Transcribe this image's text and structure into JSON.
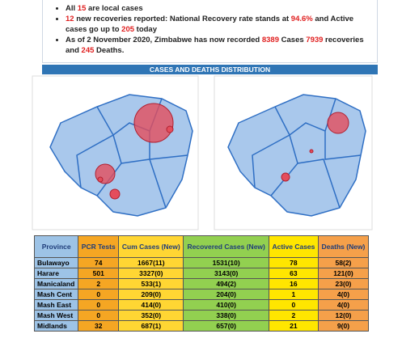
{
  "bullets": [
    [
      {
        "text": "All "
      },
      {
        "text": "15",
        "color": "#e02020"
      },
      {
        "text": " are local cases"
      }
    ],
    [
      {
        "text": "12",
        "color": "#e02020"
      },
      {
        "text": " new recoveries reported: National Recovery rate stands at "
      },
      {
        "text": "94.6%",
        "color": "#e02020"
      },
      {
        "text": " and Active cases go up to "
      },
      {
        "text": "205",
        "color": "#e02020"
      },
      {
        "text": " today"
      }
    ],
    [
      {
        "text": "As of 2 November 2020, Zimbabwe has now recorded "
      },
      {
        "text": "8389",
        "color": "#e02020"
      },
      {
        "text": " Cases "
      },
      {
        "text": "7939",
        "color": "#e02020"
      },
      {
        "text": " recoveries and "
      },
      {
        "text": "245",
        "color": "#e02020"
      },
      {
        "text": " Deaths."
      }
    ]
  ],
  "section_title": "CASES AND DEATHS DISTRIBUTION",
  "table": {
    "columns": [
      {
        "label": "Province",
        "color": "#9dc3e6"
      },
      {
        "label": "PCR Tests",
        "color": "#f5a623"
      },
      {
        "label": "Cum Cases (New)",
        "color": "#ffd633"
      },
      {
        "label": "Recovered Cases (New)",
        "color": "#92d050"
      },
      {
        "label": "Active Cases",
        "color": "#ffe600"
      },
      {
        "label": "Deaths (New)",
        "color": "#f5a04a"
      }
    ],
    "rows": [
      [
        "Bulawayo",
        "74",
        "1667(11)",
        "1531(10)",
        "78",
        "58(2)"
      ],
      [
        "Harare",
        "501",
        "3327(0)",
        "3143(0)",
        "63",
        "121(0)"
      ],
      [
        "Manicaland",
        "2",
        "533(1)",
        "494(2)",
        "16",
        "23(0)"
      ],
      [
        "Mash Cent",
        "0",
        "209(0)",
        "204(0)",
        "1",
        "4(0)"
      ],
      [
        "Mash East",
        "0",
        "414(0)",
        "410(0)",
        "0",
        "4(0)"
      ],
      [
        "Mash West",
        "0",
        "352(0)",
        "338(0)",
        "2",
        "12(0)"
      ],
      [
        "Midlands",
        "32",
        "687(1)",
        "657(0)",
        "21",
        "9(0)"
      ]
    ]
  }
}
